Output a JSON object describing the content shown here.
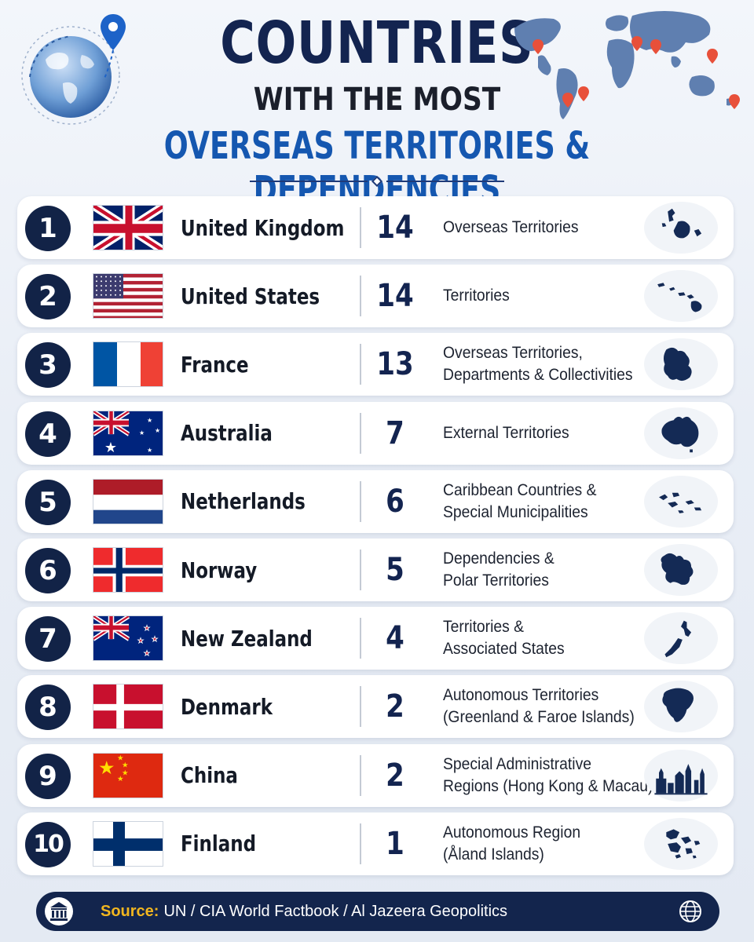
{
  "header": {
    "title_line1": "COUNTRIES",
    "title_line2": "WITH THE MOST",
    "title_line3": "OVERSEAS TERRITORIES & DEPENDENCIES"
  },
  "colors": {
    "navy": "#132450",
    "accent_blue": "#1557b0",
    "source_label": "#f2b61f"
  },
  "rows": [
    {
      "rank": "1",
      "country": "United Kingdom",
      "count": "14",
      "desc_line1": "Overseas Territories",
      "desc_line2": "",
      "flag": "uk-flag",
      "shape": "uk-islands-icon"
    },
    {
      "rank": "2",
      "country": "United States",
      "count": "14",
      "desc_line1": "Territories",
      "desc_line2": "",
      "flag": "us-flag",
      "shape": "us-islands-icon"
    },
    {
      "rank": "3",
      "country": "France",
      "count": "13",
      "desc_line1": "Overseas Territories,",
      "desc_line2": "Departments & Collectivities",
      "flag": "france-flag",
      "shape": "france-territory-icon"
    },
    {
      "rank": "4",
      "country": "Australia",
      "count": "7",
      "desc_line1": "External Territories",
      "desc_line2": "",
      "flag": "australia-flag",
      "shape": "australia-map-icon"
    },
    {
      "rank": "5",
      "country": "Netherlands",
      "count": "6",
      "desc_line1": "Caribbean Countries &",
      "desc_line2": "Special Municipalities",
      "flag": "netherlands-flag",
      "shape": "caribbean-islands-icon"
    },
    {
      "rank": "6",
      "country": "Norway",
      "count": "5",
      "desc_line1": "Dependencies &",
      "desc_line2": "Polar Territories",
      "flag": "norway-flag",
      "shape": "svalbard-icon"
    },
    {
      "rank": "7",
      "country": "New Zealand",
      "count": "4",
      "desc_line1": "Territories &",
      "desc_line2": "Associated States",
      "flag": "new-zealand-flag",
      "shape": "new-zealand-map-icon"
    },
    {
      "rank": "8",
      "country": "Denmark",
      "count": "2",
      "desc_line1": "Autonomous Territories",
      "desc_line2": "(Greenland & Faroe Islands)",
      "flag": "denmark-flag",
      "shape": "greenland-icon"
    },
    {
      "rank": "9",
      "country": "China",
      "count": "2",
      "desc_line1": "Special Administrative",
      "desc_line2": "Regions (Hong Kong & Macau)",
      "flag": "china-flag",
      "shape": "skyline-icon"
    },
    {
      "rank": "10",
      "country": "Finland",
      "count": "1",
      "desc_line1": "Autonomous Region",
      "desc_line2": "(Åland Islands)",
      "flag": "finland-flag",
      "shape": "aland-islands-icon"
    }
  ],
  "source": {
    "label": "Source:",
    "text": "UN / CIA World Factbook / Al Jazeera Geopolitics",
    "left_icon": "bank-icon",
    "right_icon": "globe-icon"
  }
}
